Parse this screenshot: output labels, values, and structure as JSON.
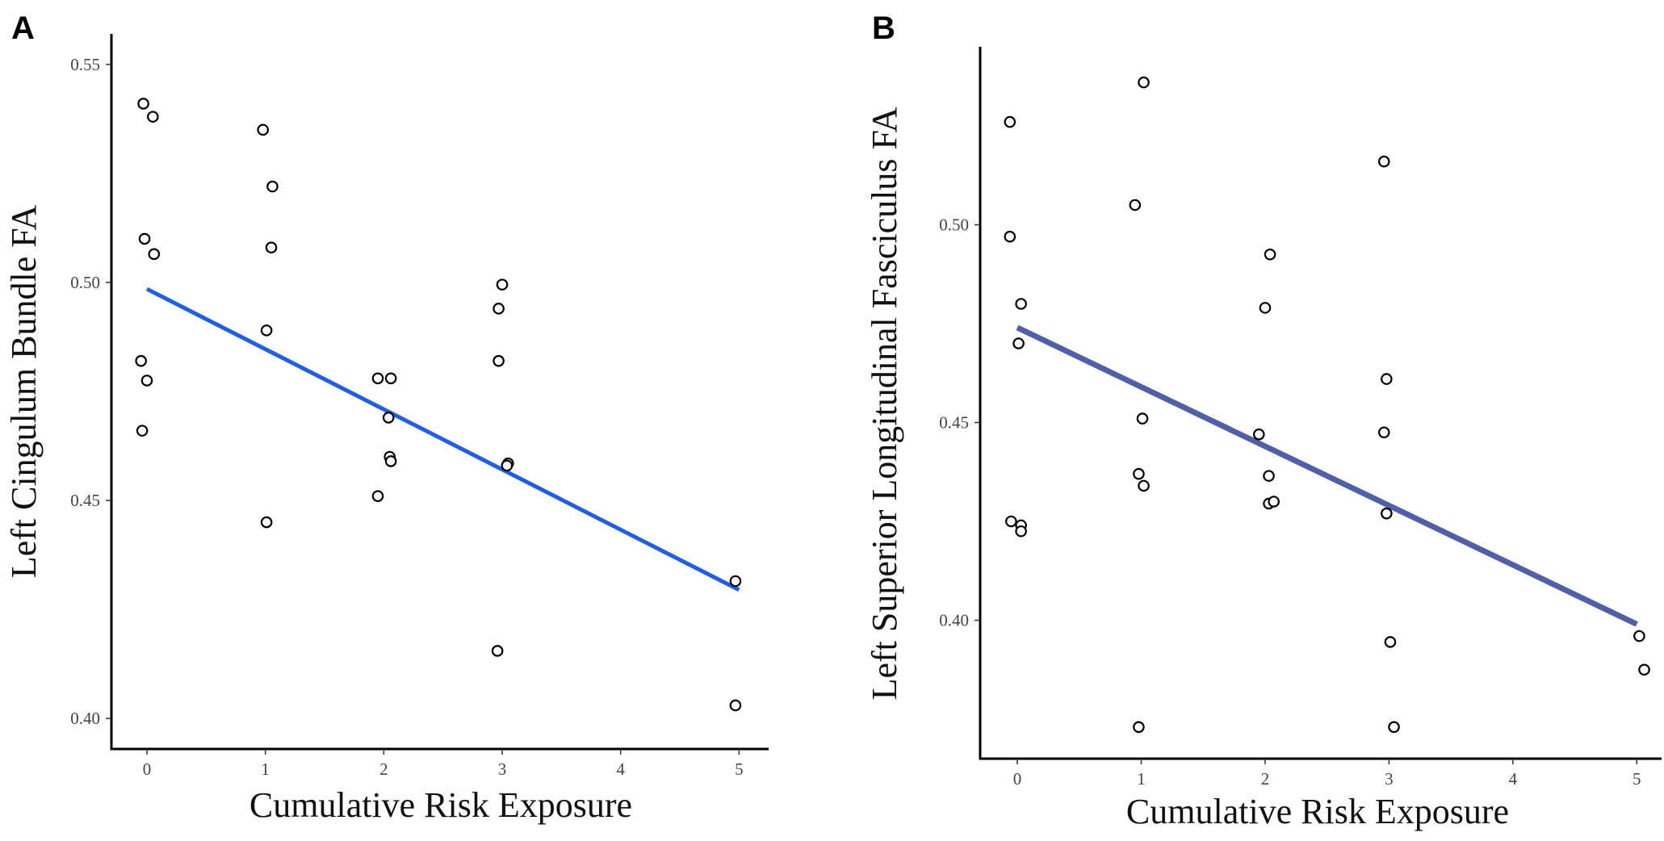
{
  "chart_data": [
    {
      "type": "scatter",
      "panel_label": "A",
      "title": "",
      "xlabel": "Cumulative Risk Exposure",
      "ylabel": "Left Cingulum Bundle FA",
      "xlim": [
        -0.3,
        5.25
      ],
      "ylim": [
        0.393,
        0.557
      ],
      "xticks": [
        0,
        1,
        2,
        3,
        4,
        5
      ],
      "xtick_labels": [
        "0",
        "1",
        "2",
        "3",
        "4",
        "5"
      ],
      "yticks": [
        0.4,
        0.45,
        0.5,
        0.55
      ],
      "ytick_labels": [
        "0.40",
        "0.45",
        "0.50",
        "0.55"
      ],
      "grid": false,
      "legend": "none",
      "points": [
        {
          "x": -0.03,
          "y": 0.541
        },
        {
          "x": 0.05,
          "y": 0.538
        },
        {
          "x": -0.02,
          "y": 0.51
        },
        {
          "x": 0.06,
          "y": 0.5065
        },
        {
          "x": -0.05,
          "y": 0.482
        },
        {
          "x": 0.0,
          "y": 0.4775
        },
        {
          "x": -0.04,
          "y": 0.466
        },
        {
          "x": 0.98,
          "y": 0.535
        },
        {
          "x": 1.06,
          "y": 0.522
        },
        {
          "x": 1.05,
          "y": 0.508
        },
        {
          "x": 1.01,
          "y": 0.489
        },
        {
          "x": 1.01,
          "y": 0.445
        },
        {
          "x": 1.95,
          "y": 0.478
        },
        {
          "x": 2.06,
          "y": 0.478
        },
        {
          "x": 2.04,
          "y": 0.469
        },
        {
          "x": 2.05,
          "y": 0.46
        },
        {
          "x": 2.06,
          "y": 0.459
        },
        {
          "x": 1.95,
          "y": 0.451
        },
        {
          "x": 3.0,
          "y": 0.4995
        },
        {
          "x": 2.97,
          "y": 0.494
        },
        {
          "x": 2.97,
          "y": 0.482
        },
        {
          "x": 3.05,
          "y": 0.4585
        },
        {
          "x": 3.04,
          "y": 0.458
        },
        {
          "x": 2.96,
          "y": 0.4155
        },
        {
          "x": 4.97,
          "y": 0.4315
        },
        {
          "x": 4.97,
          "y": 0.403
        }
      ],
      "fit_line": {
        "x": [
          0.0,
          5.0
        ],
        "y": [
          0.4985,
          0.4295
        ],
        "color": "#1f5fe8"
      }
    },
    {
      "type": "scatter",
      "panel_label": "B",
      "title": "",
      "xlabel": "Cumulative Risk Exposure",
      "ylabel": "Left Superior Longitudinal Fasciculus FA",
      "xlim": [
        -0.3,
        5.2
      ],
      "ylim": [
        0.365,
        0.545
      ],
      "xticks": [
        0,
        1,
        2,
        3,
        4,
        5
      ],
      "xtick_labels": [
        "0",
        "1",
        "2",
        "3",
        "4",
        "5"
      ],
      "yticks": [
        0.4,
        0.45,
        0.5
      ],
      "ytick_labels": [
        "0.40",
        "0.45",
        "0.50"
      ],
      "grid": false,
      "legend": "none",
      "points": [
        {
          "x": -0.06,
          "y": 0.526
        },
        {
          "x": -0.06,
          "y": 0.497
        },
        {
          "x": 0.03,
          "y": 0.48
        },
        {
          "x": 0.01,
          "y": 0.47
        },
        {
          "x": -0.05,
          "y": 0.425
        },
        {
          "x": 0.03,
          "y": 0.424
        },
        {
          "x": 0.03,
          "y": 0.4225
        },
        {
          "x": 1.02,
          "y": 0.536
        },
        {
          "x": 0.95,
          "y": 0.505
        },
        {
          "x": 1.01,
          "y": 0.451
        },
        {
          "x": 0.98,
          "y": 0.437
        },
        {
          "x": 1.02,
          "y": 0.434
        },
        {
          "x": 0.98,
          "y": 0.373
        },
        {
          "x": 2.04,
          "y": 0.4925
        },
        {
          "x": 2.0,
          "y": 0.479
        },
        {
          "x": 1.95,
          "y": 0.447
        },
        {
          "x": 2.03,
          "y": 0.4365
        },
        {
          "x": 2.03,
          "y": 0.4295
        },
        {
          "x": 2.07,
          "y": 0.43
        },
        {
          "x": 2.96,
          "y": 0.516
        },
        {
          "x": 2.98,
          "y": 0.461
        },
        {
          "x": 2.96,
          "y": 0.4475
        },
        {
          "x": 2.98,
          "y": 0.427
        },
        {
          "x": 3.01,
          "y": 0.3945
        },
        {
          "x": 3.04,
          "y": 0.373
        },
        {
          "x": 5.02,
          "y": 0.396
        },
        {
          "x": 5.06,
          "y": 0.3875
        }
      ],
      "fit_line": {
        "x": [
          0.0,
          5.0
        ],
        "y": [
          0.474,
          0.399
        ],
        "color": "#4f5fa8"
      }
    }
  ]
}
